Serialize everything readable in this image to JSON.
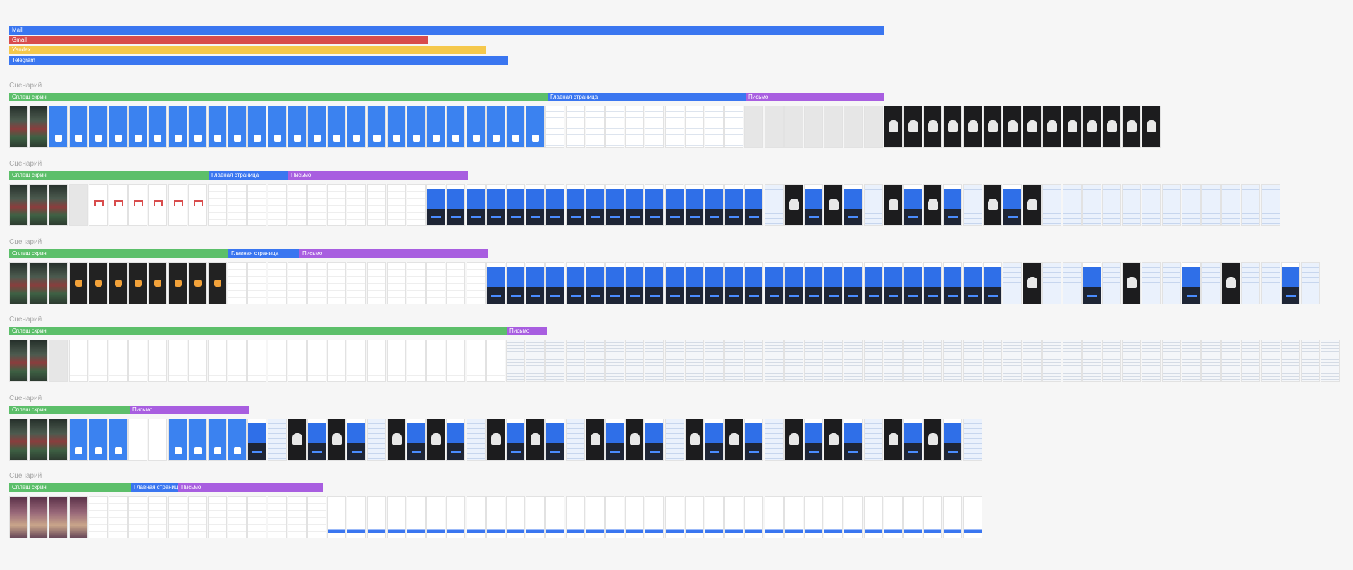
{
  "legend": [
    {
      "label": "Mail",
      "color": "#3a76f0"
    },
    {
      "label": "Gmail",
      "color": "#d84c4c"
    },
    {
      "label": "Yandex",
      "color": "#f5c84c"
    },
    {
      "label": "Telegram",
      "color": "#3a76f0"
    }
  ],
  "phase_colors": {
    "Сплеш скрин": "#5cbf6a",
    "Главная страница": "#3a76f0",
    "Письмо": "#a85ee0"
  },
  "scenarios": [
    {
      "label": "Сценарий",
      "phases": [
        "Сплеш скрин",
        "Главная страница",
        "Письмо"
      ]
    },
    {
      "label": "Сценарий",
      "phases": [
        "Сплеш скрин",
        "Главная страница",
        "Письмо"
      ]
    },
    {
      "label": "Сценарий",
      "phases": [
        "Сплеш скрин",
        "Главная страница",
        "Письмо"
      ]
    },
    {
      "label": "Сценарий",
      "phases": [
        "Сплеш скрин",
        "Письмо"
      ]
    },
    {
      "label": "Сценарий",
      "phases": [
        "Сплеш скрин",
        "Письмо"
      ]
    },
    {
      "label": "Сценарий",
      "phases": [
        "Сплеш скрин",
        "Главная страница",
        "Письмо"
      ]
    }
  ]
}
